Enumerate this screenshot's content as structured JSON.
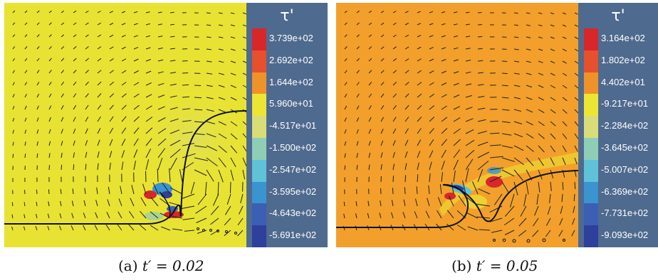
{
  "panels": [
    {
      "caption_label": "(a)",
      "caption_math": "t′ = 0.02",
      "background": "#e8e332",
      "colorbar": {
        "title": "τ'",
        "labels": [
          "3.739e+02",
          "2.692e+02",
          "1.644e+02",
          "5.960e+01",
          "-4.517e+01",
          "-1.500e+02",
          "-2.547e+02",
          "-3.595e+02",
          "-4.643e+02",
          "-5.691e+02"
        ]
      }
    },
    {
      "caption_label": "(b)",
      "caption_math": "t′ = 0.05",
      "background": "#f2a02b",
      "colorbar": {
        "title": "τ'",
        "labels": [
          "3.164e+02",
          "1.802e+02",
          "4.402e+01",
          "-9.217e+01",
          "-2.284e+02",
          "-3.645e+02",
          "-5.007e+02",
          "-6.369e+02",
          "-7.731e+02",
          "-9.093e+02"
        ]
      }
    }
  ],
  "colormap": [
    "#d8262b",
    "#e6502c",
    "#f0922a",
    "#ede534",
    "#d9dd77",
    "#8fcdb7",
    "#60c2d8",
    "#3b93cf",
    "#3b5fb4",
    "#2e3f9c"
  ]
}
